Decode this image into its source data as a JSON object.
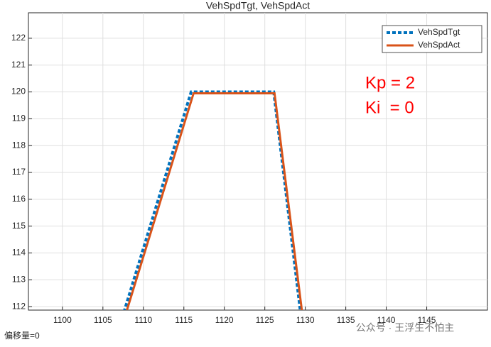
{
  "chart_data": {
    "type": "line",
    "title": "VehSpdTgt, VehSpdAct",
    "series": [
      {
        "name": "VehSpdTgt",
        "color": "#0072bd",
        "dashed": true,
        "x": [
          1107.6,
          1115.9,
          1126.1,
          1129.4
        ],
        "values": [
          111.8,
          120,
          120,
          111.8
        ]
      },
      {
        "name": "VehSpdAct",
        "color": "#d95319",
        "dashed": false,
        "x": [
          1107.9,
          1116.2,
          1126.2,
          1129.6
        ],
        "values": [
          111.8,
          119.95,
          119.95,
          111.8
        ]
      }
    ],
    "xlim": [
      1095.8,
      1152.5
    ],
    "xticks": [
      1100,
      1105,
      1110,
      1115,
      1120,
      1125,
      1130,
      1135,
      1140,
      1145
    ],
    "ylim": [
      111.87,
      122.95
    ],
    "yticks": [
      112,
      113,
      114,
      115,
      116,
      117,
      118,
      119,
      120,
      121,
      122
    ],
    "grid": true,
    "legend": "northeast",
    "annotations": [
      "Kp = 2",
      "Ki  = 0"
    ],
    "annotation_color": "#ff0000",
    "footer": "偏移量=0",
    "watermark": "公众号 · 王浮生不怕主"
  }
}
